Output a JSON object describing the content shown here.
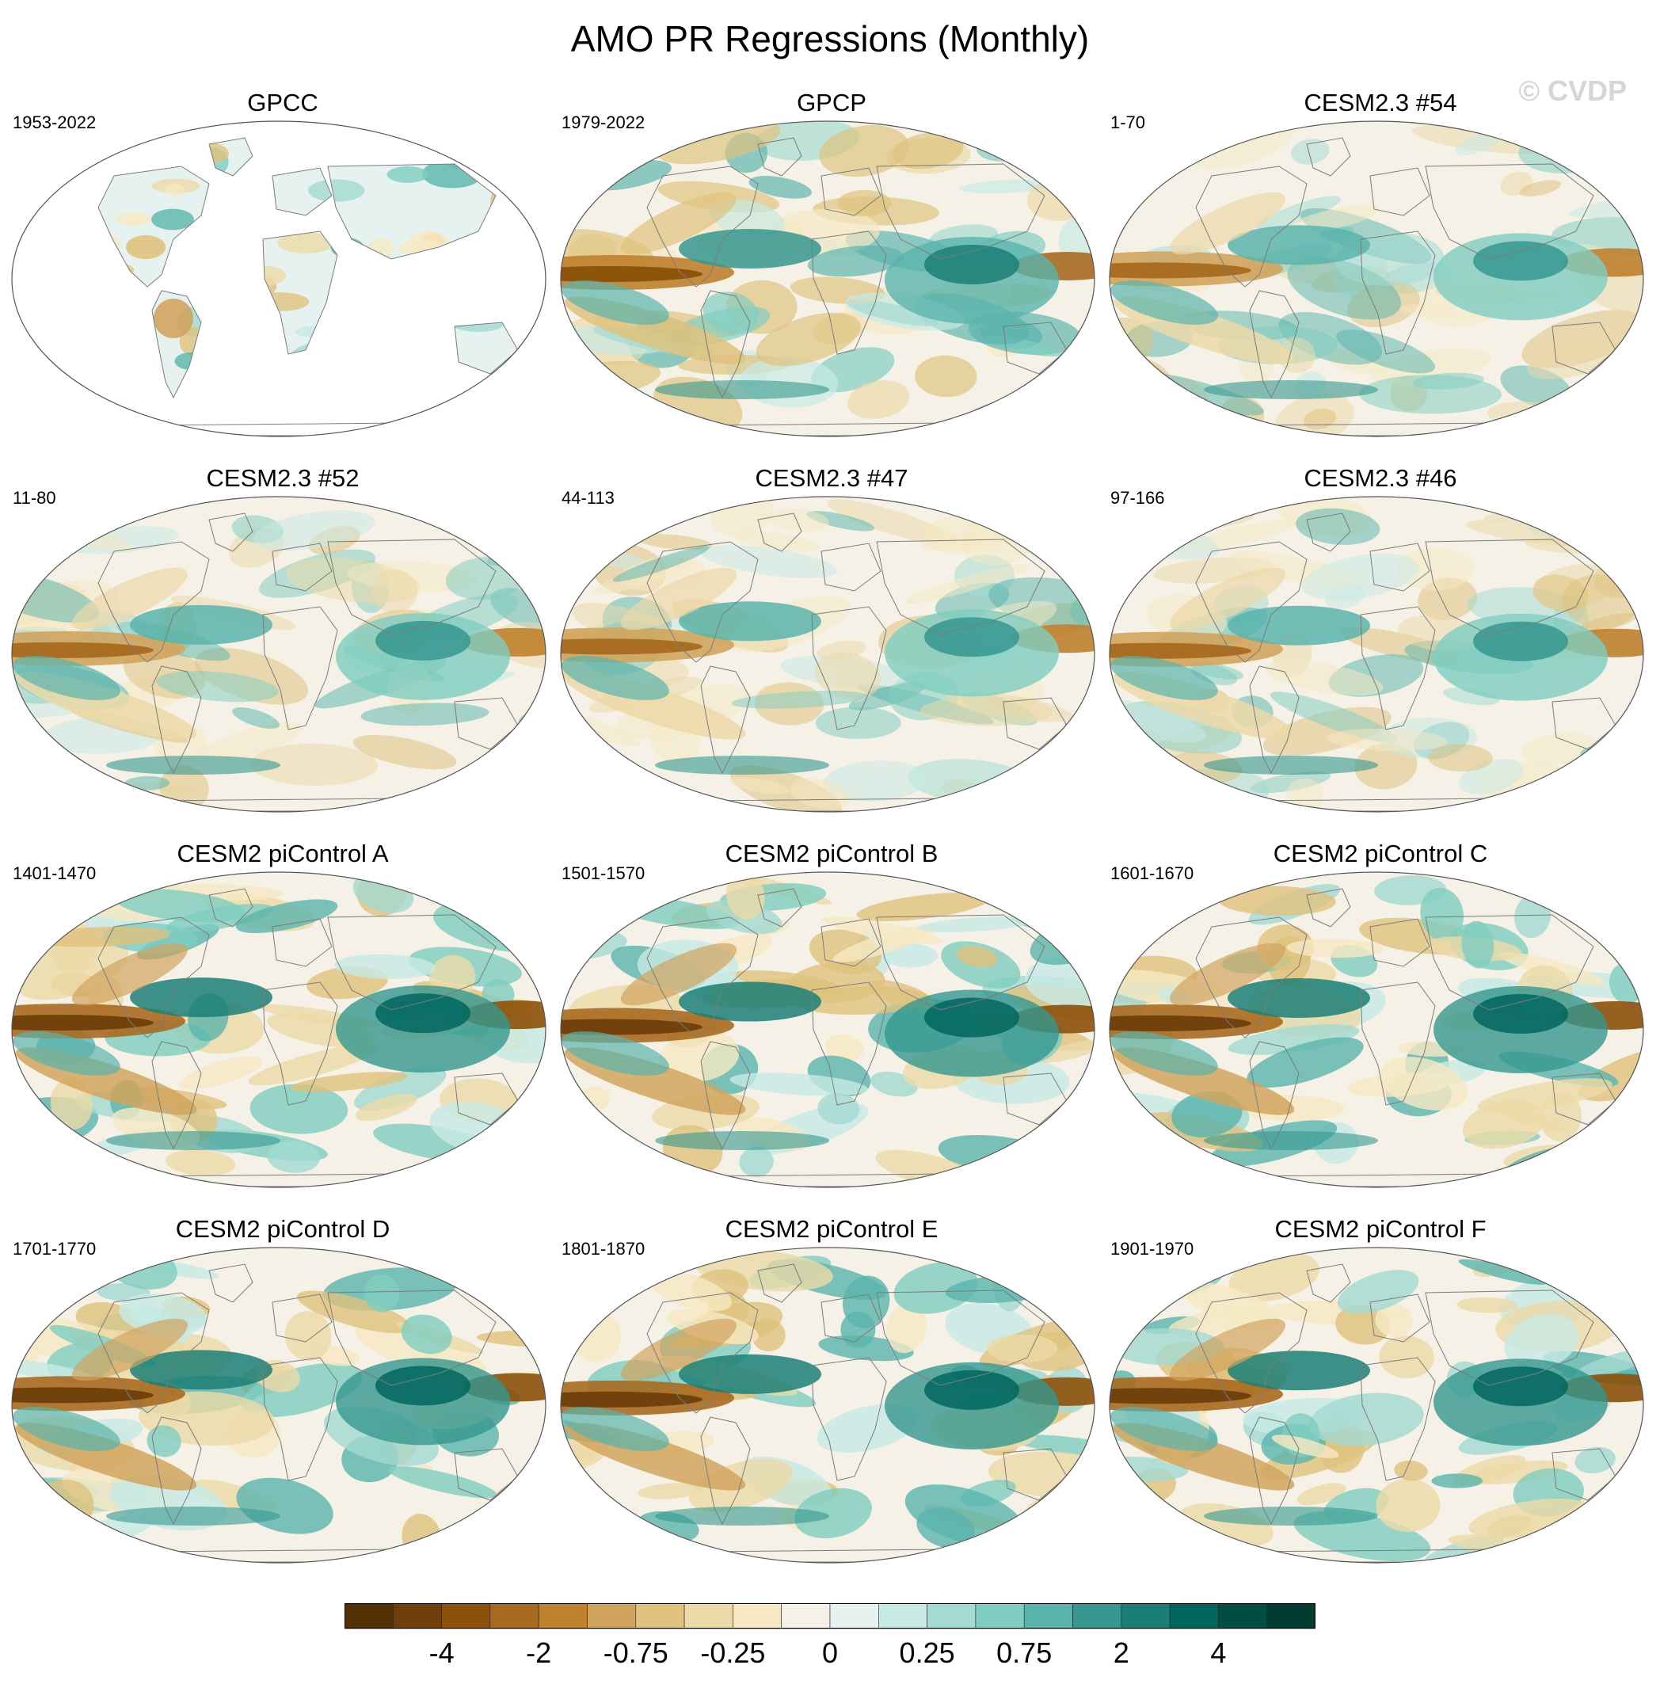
{
  "title": "AMO PR Regressions (Monthly)",
  "watermark": "© CVDP",
  "panels": [
    {
      "title": "GPCC",
      "years": "1953-2022",
      "style": "land"
    },
    {
      "title": "GPCP",
      "years": "1979-2022",
      "style": "obs"
    },
    {
      "title": "CESM2.3 #54",
      "years": "1-70",
      "style": "model"
    },
    {
      "title": "CESM2.3 #52",
      "years": "11-80",
      "style": "model"
    },
    {
      "title": "CESM2.3 #47",
      "years": "44-113",
      "style": "model"
    },
    {
      "title": "CESM2.3 #46",
      "years": "97-166",
      "style": "model"
    },
    {
      "title": "CESM2 piControl A",
      "years": "1401-1470",
      "style": "strong"
    },
    {
      "title": "CESM2 piControl B",
      "years": "1501-1570",
      "style": "strong"
    },
    {
      "title": "CESM2 piControl C",
      "years": "1601-1670",
      "style": "strong"
    },
    {
      "title": "CESM2 piControl D",
      "years": "1701-1770",
      "style": "strong"
    },
    {
      "title": "CESM2 piControl E",
      "years": "1801-1870",
      "style": "strong"
    },
    {
      "title": "CESM2 piControl F",
      "years": "1901-1970",
      "style": "strong"
    }
  ],
  "colorbar": {
    "colors": [
      "#543005",
      "#6f3f0c",
      "#8c510a",
      "#a86a20",
      "#bf812d",
      "#d1a45e",
      "#dfc27d",
      "#ecd9a8",
      "#f6e8c3",
      "#f5f1e6",
      "#e6f2f0",
      "#c7eae5",
      "#a3dad2",
      "#80cdc1",
      "#5ab4ac",
      "#35978f",
      "#1b7f76",
      "#01665e",
      "#014d44",
      "#003c30"
    ],
    "tick_labels": [
      {
        "label": "-4",
        "index": 2
      },
      {
        "label": "-2",
        "index": 4
      },
      {
        "label": "-0.75",
        "index": 6
      },
      {
        "label": "-0.25",
        "index": 8
      },
      {
        "label": "0",
        "index": 10
      },
      {
        "label": "0.25",
        "index": 12
      },
      {
        "label": "0.75",
        "index": 14
      },
      {
        "label": "2",
        "index": 16
      },
      {
        "label": "4",
        "index": 18
      }
    ]
  }
}
